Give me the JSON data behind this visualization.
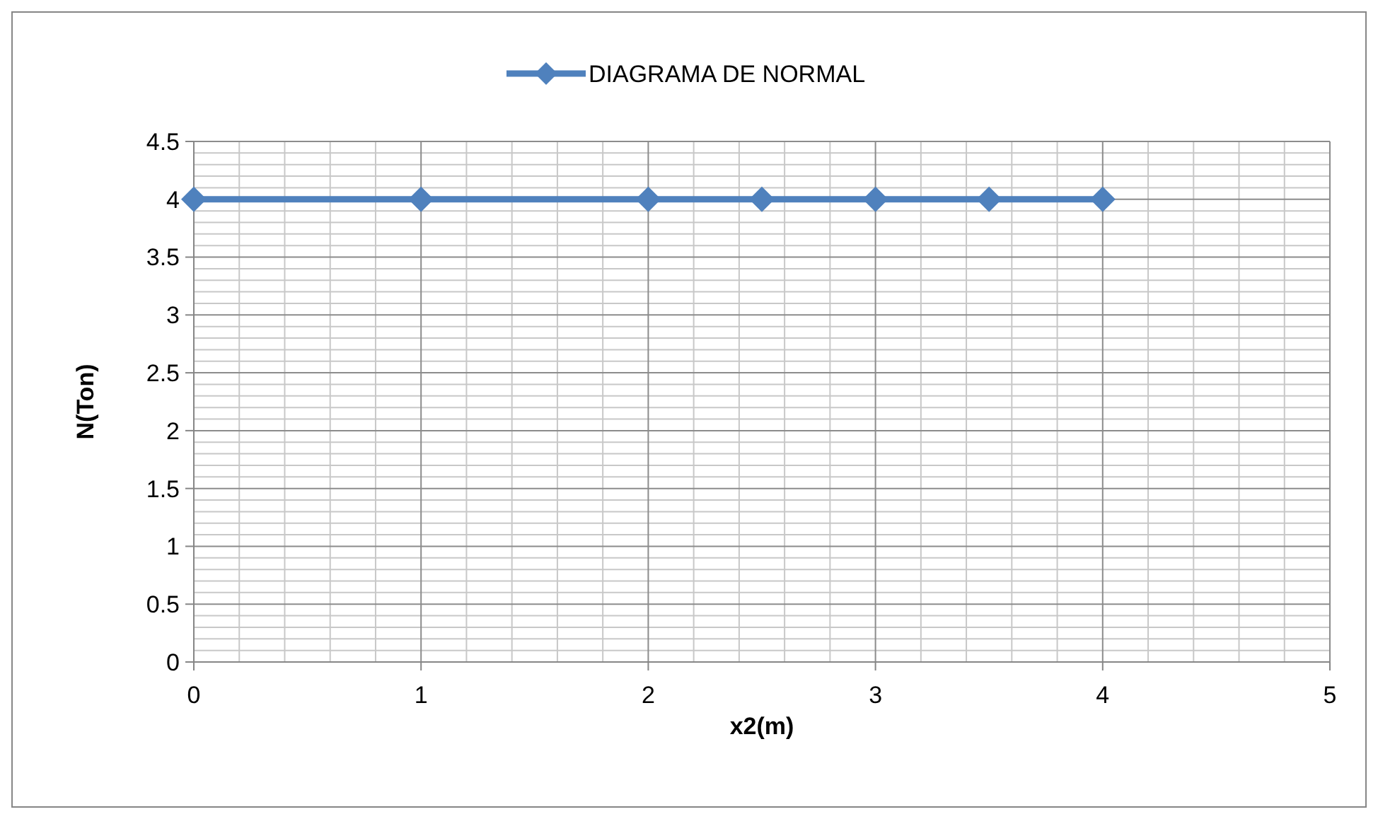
{
  "chart_data": {
    "type": "line",
    "xlabel": "x2(m)",
    "ylabel": "N(Ton)",
    "series": [
      {
        "name": "DIAGRAMA DE NORMAL",
        "color": "#4f81bd",
        "x": [
          0,
          1,
          2,
          2.5,
          3,
          3.5,
          4
        ],
        "values": [
          4,
          4,
          4,
          4,
          4,
          4,
          4
        ]
      }
    ],
    "xlim": [
      0,
      5
    ],
    "xticks": [
      0,
      1,
      2,
      3,
      4,
      5
    ],
    "ylim": [
      0,
      4.5
    ],
    "yticks": [
      0,
      0.5,
      1,
      1.5,
      2,
      2.5,
      3,
      3.5,
      4,
      4.5
    ],
    "grid": true,
    "legend": "top",
    "marker": "diamond",
    "line_style": "solid"
  }
}
